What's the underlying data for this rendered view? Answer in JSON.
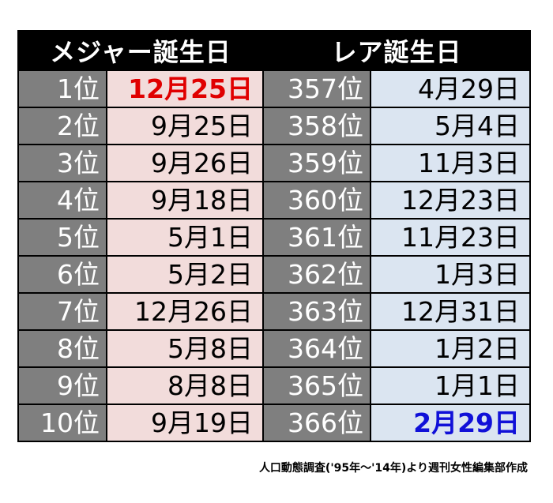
{
  "header": {
    "major_title": "メジャー誕生日",
    "rare_title": "レア誕生日"
  },
  "rows": [
    {
      "major_rank": "1位",
      "major_date": "12月25日",
      "rare_rank": "357位",
      "rare_date": "4月29日"
    },
    {
      "major_rank": "2位",
      "major_date": "9月25日",
      "rare_rank": "358位",
      "rare_date": "5月4日"
    },
    {
      "major_rank": "3位",
      "major_date": "9月26日",
      "rare_rank": "359位",
      "rare_date": "11月3日"
    },
    {
      "major_rank": "4位",
      "major_date": "9月18日",
      "rare_rank": "360位",
      "rare_date": "12月23日"
    },
    {
      "major_rank": "5位",
      "major_date": "5月1日",
      "rare_rank": "361位",
      "rare_date": "11月23日"
    },
    {
      "major_rank": "6位",
      "major_date": "5月2日",
      "rare_rank": "362位",
      "rare_date": "1月3日"
    },
    {
      "major_rank": "7位",
      "major_date": "12月26日",
      "rare_rank": "363位",
      "rare_date": "12月31日"
    },
    {
      "major_rank": "8位",
      "major_date": "5月8日",
      "rare_rank": "364位",
      "rare_date": "1月2日"
    },
    {
      "major_rank": "9位",
      "major_date": "8月8日",
      "rare_rank": "365位",
      "rare_date": "1月1日"
    },
    {
      "major_rank": "10位",
      "major_date": "9月19日",
      "rare_rank": "366位",
      "rare_date": "2月29日"
    }
  ],
  "caption": "人口動態調査('95年～'14年)より週刊女性編集部作成",
  "colors": {
    "header_bg": "#000000",
    "rank_bg": "#7f7f7f",
    "major_bg": "#f2dcdb",
    "rare_bg": "#dbe5f1",
    "highlight_major": "#e00000",
    "highlight_rare": "#1010d8"
  }
}
